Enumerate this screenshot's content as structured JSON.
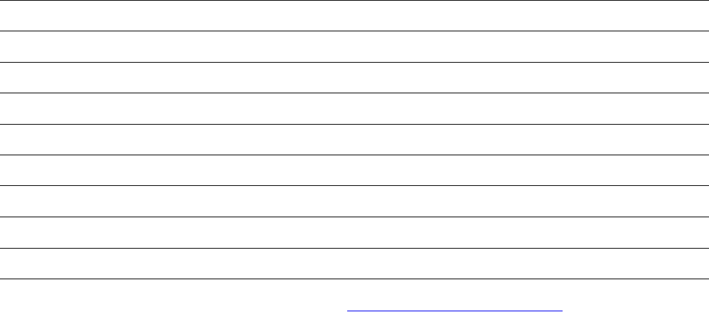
{
  "document": {
    "rule_color": "#000000",
    "link_color": "#0000ee"
  }
}
